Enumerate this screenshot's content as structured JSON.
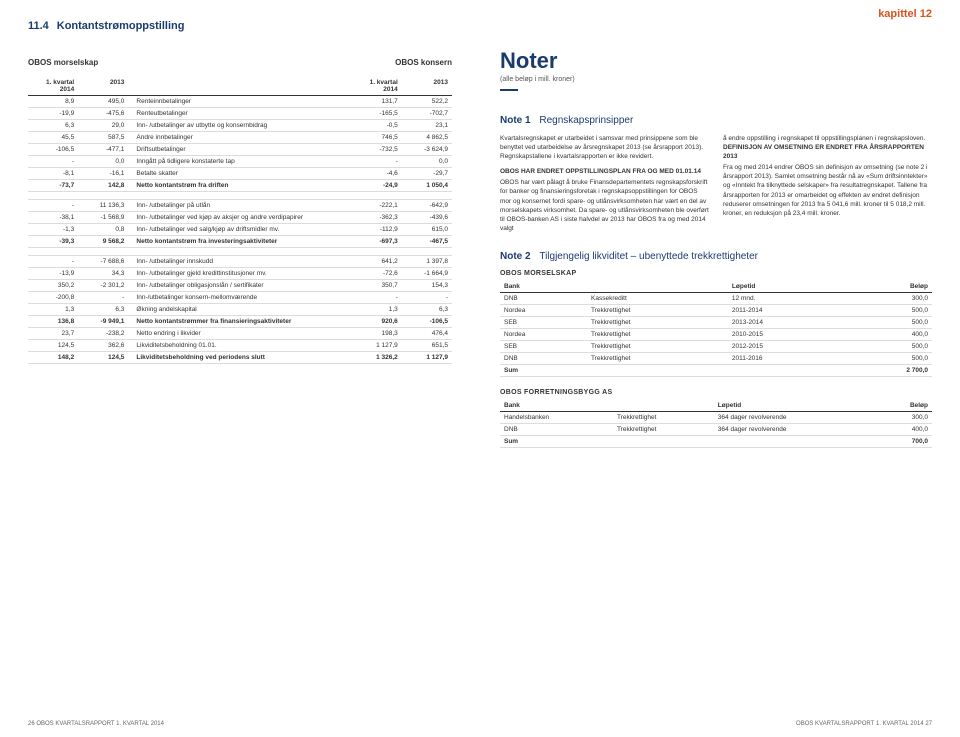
{
  "chapter": "kapittel 12",
  "section_num": "11.4",
  "section_title": "Kontantstrømoppstilling",
  "col_labels": {
    "left": "OBOS morselskap",
    "right": "OBOS konsern"
  },
  "periods": {
    "p1": "1. kvartal 2014",
    "p2": "2013",
    "p3": "1. kvartal 2014",
    "p4": "2013"
  },
  "rows_block1": [
    {
      "c1": "8,9",
      "c2": "495,0",
      "desc": "Renteinnbetalinger",
      "c3": "131,7",
      "c4": "522,2"
    },
    {
      "c1": "-19,9",
      "c2": "-475,6",
      "desc": "Renteutbetalinger",
      "c3": "-165,5",
      "c4": "-702,7"
    },
    {
      "c1": "6,3",
      "c2": "29,0",
      "desc": "Inn- /utbetalinger av utbytte og konsernbidrag",
      "c3": "-0,5",
      "c4": "23,1"
    },
    {
      "c1": "45,5",
      "c2": "587,5",
      "desc": "Andre innbetalinger",
      "c3": "746,5",
      "c4": "4 862,5"
    },
    {
      "c1": "-106,5",
      "c2": "-477,1",
      "desc": "Driftsutbetalinger",
      "c3": "-732,5",
      "c4": "-3 624,9"
    },
    {
      "c1": "-",
      "c2": "0,0",
      "desc": "Inngått på tidligere konstaterte tap",
      "c3": "-",
      "c4": "0,0"
    },
    {
      "c1": "-8,1",
      "c2": "-16,1",
      "desc": "Betalte skatter",
      "c3": "-4,6",
      "c4": "-29,7"
    },
    {
      "c1": "-73,7",
      "c2": "142,8",
      "desc": "Netto kontantstrøm fra driften",
      "c3": "-24,9",
      "c4": "1 050,4",
      "bold": true
    }
  ],
  "rows_block2": [
    {
      "c1": "-",
      "c2": "11 136,3",
      "desc": "Inn- /utbetalinger på utlån",
      "c3": "-222,1",
      "c4": "-642,9"
    },
    {
      "c1": "-38,1",
      "c2": "-1 568,9",
      "desc": "Inn- /utbetalinger ved kjøp av aksjer og andre verdipapirer",
      "c3": "-362,3",
      "c4": "-439,6"
    },
    {
      "c1": "-1,3",
      "c2": "0,8",
      "desc": "Inn- /utbetalinger ved salg/kjøp av driftsmidler mv.",
      "c3": "-112,9",
      "c4": "615,0"
    },
    {
      "c1": "-39,3",
      "c2": "9 568,2",
      "desc": "Netto kontantstrøm fra investeringsaktiviteter",
      "c3": "-697,3",
      "c4": "-467,5",
      "bold": true
    }
  ],
  "rows_block3": [
    {
      "c1": "-",
      "c2": "-7 688,6",
      "desc": "Inn- /utbetalinger innskudd",
      "c3": "641,2",
      "c4": "1 397,8"
    },
    {
      "c1": "-13,9",
      "c2": "34,3",
      "desc": "Inn- /utbetalinger gjeld kredittinstitusjoner mv.",
      "c3": "-72,6",
      "c4": "-1 664,9"
    },
    {
      "c1": "350,2",
      "c2": "-2 301,2",
      "desc": "Inn- /utbetalinger obligasjonslån / sertifikater",
      "c3": "350,7",
      "c4": "154,3"
    },
    {
      "c1": "-200,8",
      "c2": "-",
      "desc": "Inn-/utbetalinger konsern-mellomværende",
      "c3": "-",
      "c4": "-"
    },
    {
      "c1": "1,3",
      "c2": "6,3",
      "desc": "Økning andelskapital",
      "c3": "1,3",
      "c4": "6,3"
    },
    {
      "c1": "136,8",
      "c2": "-9 949,1",
      "desc": "Netto kontantstrømmer fra finansieringsaktiviteter",
      "c3": "920,6",
      "c4": "-106,5",
      "bold": true
    },
    {
      "c1": "23,7",
      "c2": "-238,2",
      "desc": "Netto endring i likvider",
      "c3": "198,3",
      "c4": "476,4"
    },
    {
      "c1": "124,5",
      "c2": "362,6",
      "desc": "Likviditetsbeholdning 01.01.",
      "c3": "1 127,9",
      "c4": "651,5"
    },
    {
      "c1": "148,2",
      "c2": "124,5",
      "desc": "Likviditetsbeholdning ved periodens slutt",
      "c3": "1 326,2",
      "c4": "1 127,9",
      "bold": true
    }
  ],
  "noter": {
    "title": "Noter",
    "sub": "(alle beløp i mill. kroner)"
  },
  "note1": {
    "head": "Note 1",
    "title": "Regnskapsprinsipper",
    "left_p1": "Kvartalsregnskapet er utarbeidet i samsvar med prinsippene som ble benyttet ved utarbeidelse av årsregnskapet 2013 (se årsrapport 2013). Regnskapstallene i kvartalsrapporten er ikke revidert.",
    "left_h1": "OBOS HAR ENDRET OPPSTILLINGSPLAN FRA OG MED 01.01.14",
    "left_p2": "OBOS har vært pålagt å bruke Finansdepartementets regnskapsforskrift for banker og finansieringsforetak i regnskapsoppstillingen for OBOS mor og konsernet fordi spare- og utlånsvirksomheten har vært en del av morselskapets virksomhet. Da spare- og utlånsvirksomheten ble overført til OBOS-banken AS i siste halvdel av 2013 har OBOS fra og med 2014 valgt",
    "right_p1": "å endre oppstilling i regnskapet til oppstillingsplanen i regnskapsloven.",
    "right_h1": "DEFINISJON AV OMSETNING ER ENDRET FRA ÅRSRAPPORTEN 2013",
    "right_p2": "Fra og med 2014 endrer OBOS sin definisjon av omsetning (se note 2 i årsrapport 2013). Samlet omsetning består nå av «Sum driftsinntekter» og «Inntekt fra tilknyttede selskaper» fra resultatregnskapet. Tallene fra årsrapporten for 2013 er omarbeidet og effekten av endret definisjon reduserer omsetningen for 2013 fra 5 041,6 mill. kroner til 5 018,2 mill. kroner, en reduksjon på 23,4 mill. kroner."
  },
  "note2": {
    "head": "Note 2",
    "title": "Tilgjengelig likviditet – ubenyttede trekkrettigheter",
    "group1": "OBOS MORSELSKAP",
    "cols": {
      "c1": "Bank",
      "c2": "",
      "c3": "Løpetid",
      "c4": "Beløp"
    },
    "t1": [
      {
        "c1": "DNB",
        "c2": "Kassekreditt",
        "c3": "12 mnd.",
        "c4": "300,0"
      },
      {
        "c1": "Nordea",
        "c2": "Trekkrettighet",
        "c3": "2011-2014",
        "c4": "500,0"
      },
      {
        "c1": "SEB",
        "c2": "Trekkrettighet",
        "c3": "2013-2014",
        "c4": "500,0"
      },
      {
        "c1": "Nordea",
        "c2": "Trekkrettighet",
        "c3": "2010-2015",
        "c4": "400,0"
      },
      {
        "c1": "SEB",
        "c2": "Trekkrettighet",
        "c3": "2012-2015",
        "c4": "500,0"
      },
      {
        "c1": "DNB",
        "c2": "Trekkrettighet",
        "c3": "2011-2016",
        "c4": "500,0"
      }
    ],
    "t1_sum": {
      "label": "Sum",
      "val": "2 700,0"
    },
    "group2": "OBOS FORRETNINGSBYGG AS",
    "t2": [
      {
        "c1": "Handelsbanken",
        "c2": "Trekkrettighet",
        "c3": "364 dager revolverende",
        "c4": "300,0"
      },
      {
        "c1": "DNB",
        "c2": "Trekkrettighet",
        "c3": "364 dager revolverende",
        "c4": "400,0"
      }
    ],
    "t2_sum": {
      "label": "Sum",
      "val": "700,0"
    }
  },
  "footer_left": "26  OBOS KVARTALSRAPPORT  1. KVARTAL 2014",
  "footer_right": "OBOS KVARTALSRAPPORT  1. KVARTAL 2014  27"
}
